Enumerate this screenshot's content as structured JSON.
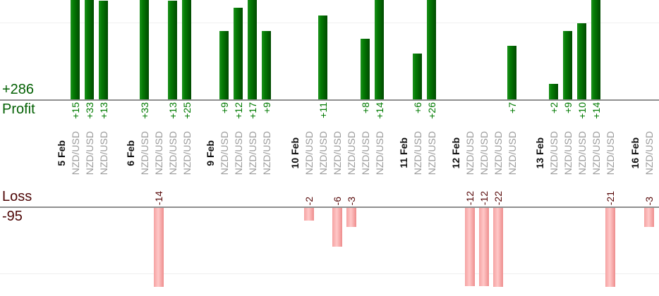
{
  "chart_data": {
    "type": "bar",
    "title": "",
    "symbol": "NZD/USD",
    "profit_axis": {
      "axis_label": "Profit",
      "total_value": 286,
      "total_label": "+286",
      "gridline_values": [
        10
      ],
      "visible_max": 13
    },
    "loss_axis": {
      "axis_label": "Loss",
      "total_value": -95,
      "total_label": "-95",
      "gridline_values": [
        -10
      ],
      "visible_min": -12
    },
    "groups": [
      {
        "date": "5 Feb",
        "trades": [
          {
            "symbol": "NZD/USD",
            "value": 15,
            "label": "+15"
          },
          {
            "symbol": "NZD/USD",
            "value": 33,
            "label": "+33"
          },
          {
            "symbol": "NZD/USD",
            "value": 13,
            "label": "+13"
          }
        ]
      },
      {
        "date": "6 Feb",
        "trades": [
          {
            "symbol": "NZD/USD",
            "value": 33,
            "label": "+33"
          },
          {
            "symbol": "NZD/USD",
            "value": -14,
            "label": "-14"
          },
          {
            "symbol": "NZD/USD",
            "value": 13,
            "label": "+13"
          },
          {
            "symbol": "NZD/USD",
            "value": 25,
            "label": "+25"
          }
        ]
      },
      {
        "date": "9 Feb",
        "trades": [
          {
            "symbol": "NZD/USD",
            "value": 9,
            "label": "+9"
          },
          {
            "symbol": "NZD/USD",
            "value": 12,
            "label": "+12"
          },
          {
            "symbol": "NZD/USD",
            "value": 17,
            "label": "+17"
          },
          {
            "symbol": "NZD/USD",
            "value": 9,
            "label": "+9"
          }
        ]
      },
      {
        "date": "10 Feb",
        "trades": [
          {
            "symbol": "NZD/USD",
            "value": -2,
            "label": "-2"
          },
          {
            "symbol": "NZD/USD",
            "value": 11,
            "label": "+11"
          },
          {
            "symbol": "NZD/USD",
            "value": -6,
            "label": "-6"
          },
          {
            "symbol": "NZD/USD",
            "value": -3,
            "label": "-3"
          },
          {
            "symbol": "NZD/USD",
            "value": 8,
            "label": "+8"
          },
          {
            "symbol": "NZD/USD",
            "value": 14,
            "label": "+14"
          }
        ]
      },
      {
        "date": "11 Feb",
        "trades": [
          {
            "symbol": "NZD/USD",
            "value": 6,
            "label": "+6"
          },
          {
            "symbol": "NZD/USD",
            "value": 26,
            "label": "+26"
          }
        ]
      },
      {
        "date": "12 Feb",
        "trades": [
          {
            "symbol": "NZD/USD",
            "value": -12,
            "label": "-12"
          },
          {
            "symbol": "NZD/USD",
            "value": -12,
            "label": "-12"
          },
          {
            "symbol": "NZD/USD",
            "value": -22,
            "label": "-22"
          },
          {
            "symbol": "NZD/USD",
            "value": 7,
            "label": "+7"
          }
        ]
      },
      {
        "date": "13 Feb",
        "trades": [
          {
            "symbol": "NZD/USD",
            "value": 2,
            "label": "+2"
          },
          {
            "symbol": "NZD/USD",
            "value": 9,
            "label": "+9"
          },
          {
            "symbol": "NZD/USD",
            "value": 10,
            "label": "+10"
          },
          {
            "symbol": "NZD/USD",
            "value": 14,
            "label": "+14"
          },
          {
            "symbol": "NZD/USD",
            "value": -21,
            "label": "-21"
          }
        ]
      },
      {
        "date": "16 Feb",
        "trades": [
          {
            "symbol": "NZD/USD",
            "value": -3,
            "label": "-3"
          }
        ]
      }
    ],
    "colors": {
      "profit_bar_light": "#1d921d",
      "profit_bar_dark": "#004a00",
      "loss_bar_light": "#ffc8c8",
      "loss_bar_dark": "#ee8d8d",
      "profit_text": "#036003",
      "profit_value_text": "#007a00",
      "loss_text": "#4d0505",
      "loss_value_text": "#570808",
      "date_text": "#111111",
      "symbol_text": "#9b9b9b",
      "axis_line": "#8f8f8f",
      "gridline": "#efefef"
    }
  }
}
